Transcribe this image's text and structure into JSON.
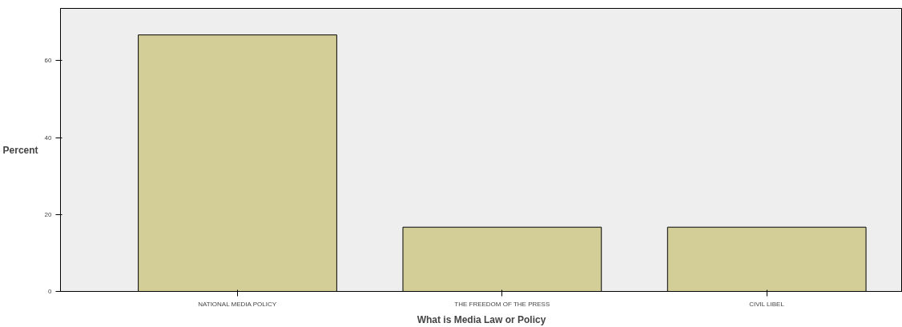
{
  "chart_data": {
    "type": "bar",
    "xlabel": "What is Media Law or Policy",
    "ylabel": "Percent",
    "categories": [
      "NATIONAL MEDIA POLICY",
      "THE FREEDOM OF THE PRESS",
      "CIVIL LIBEL"
    ],
    "values": [
      66.7,
      16.7,
      16.7
    ],
    "color": "#d3ce97",
    "ylim": [
      0,
      73.6
    ],
    "yticks": [
      0,
      20,
      40,
      60
    ],
    "grid": false
  }
}
